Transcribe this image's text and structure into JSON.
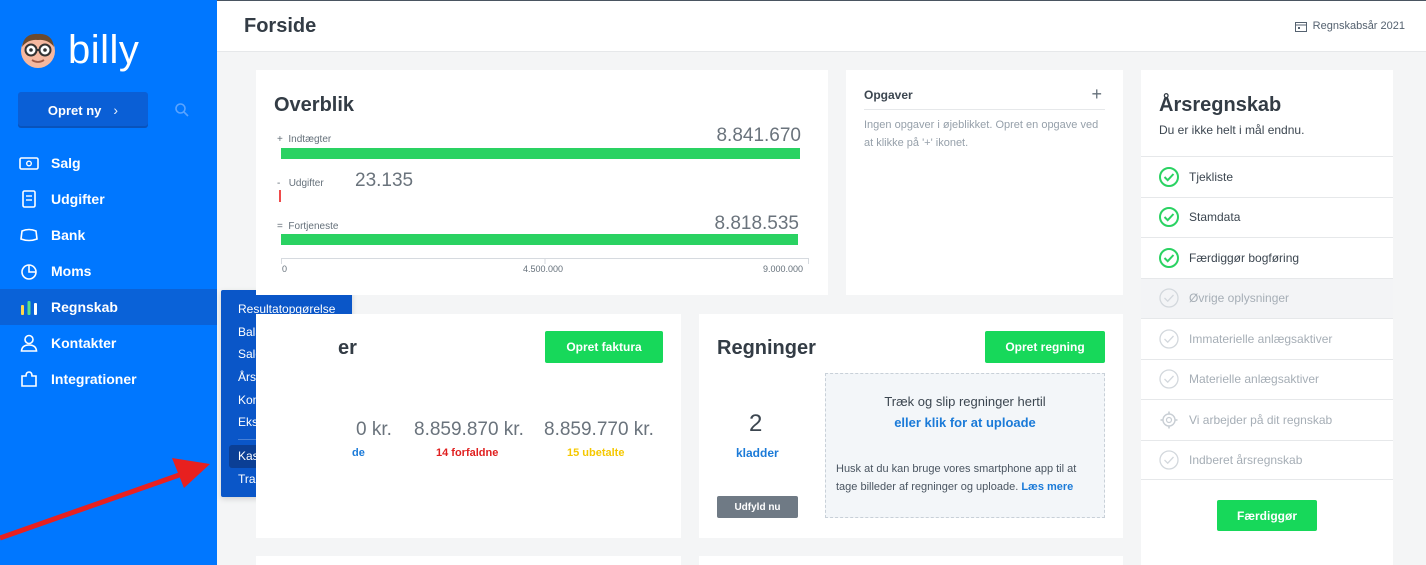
{
  "brand": {
    "name": "billy"
  },
  "sidebar": {
    "create_label": "Opret ny",
    "items": [
      {
        "label": "Salg",
        "icon": "sales-icon"
      },
      {
        "label": "Udgifter",
        "icon": "receipt-icon"
      },
      {
        "label": "Bank",
        "icon": "bank-icon"
      },
      {
        "label": "Moms",
        "icon": "pie-chart-icon"
      },
      {
        "label": "Regnskab",
        "icon": "bar-chart-icon"
      },
      {
        "label": "Kontakter",
        "icon": "person-icon"
      },
      {
        "label": "Integrationer",
        "icon": "puzzle-icon"
      }
    ],
    "submenu": [
      "Resultatopgørelse",
      "Balance",
      "Saldobalance",
      "Årsregnskab",
      "Kontoplan",
      "Eksport",
      "Kassekladde",
      "Transaktioner"
    ]
  },
  "header": {
    "title": "Forside",
    "fiscal_year": "Regnskabsår 2021"
  },
  "overview": {
    "title": "Overblik",
    "rows": [
      {
        "sign": "+",
        "label": "Indtægter",
        "value": "8.841.670",
        "amount": 8841670
      },
      {
        "sign": "-",
        "label": "Udgifter",
        "value": "23.135",
        "amount": 23135
      },
      {
        "sign": "=",
        "label": "Fortjeneste",
        "value": "8.818.535",
        "amount": 8818535
      }
    ],
    "axis_ticks": [
      "0",
      "4.500.000",
      "9.000.000"
    ],
    "axis_max": 9000000
  },
  "tasks": {
    "title": "Opgaver",
    "empty_text": "Ingen opgaver i øjeblikket. Opret en opgave ved at klikke på '+' ikonet."
  },
  "invoices": {
    "title_fragment": "er",
    "button": "Opret faktura",
    "amounts": [
      {
        "value": "0 kr.",
        "sub": "de",
        "color": "#1a7ad8"
      },
      {
        "value": "8.859.870 kr.",
        "sub": "14 forfaldne",
        "color": "#e02020"
      },
      {
        "value": "8.859.770 kr.",
        "sub": "15 ubetalte",
        "color": "#f5c800"
      }
    ]
  },
  "bills": {
    "title": "Regninger",
    "button": "Opret regning",
    "drafts_count": "2",
    "drafts_label": "kladder",
    "fill_button": "Udfyld nu",
    "drop_title": "Træk og slip regninger hertil",
    "drop_link": "eller klik for at uploade",
    "drop_hint": "Husk at du kan bruge vores smartphone app til at tage billeder af regninger og uploade.",
    "drop_hint_link": "Læs mere"
  },
  "annual": {
    "title": "Årsregnskab",
    "subtitle": "Du er ikke helt i mål endnu.",
    "steps": [
      {
        "label": "Tjekliste",
        "state": "done"
      },
      {
        "label": "Stamdata",
        "state": "done"
      },
      {
        "label": "Færdiggør bogføring",
        "state": "done"
      },
      {
        "label": "Øvrige oplysninger",
        "state": "disabled"
      },
      {
        "label": "Immaterielle anlægsaktiver",
        "state": "disabled"
      },
      {
        "label": "Materielle anlægsaktiver",
        "state": "disabled"
      },
      {
        "label": "Vi arbejder på dit regnskab",
        "state": "pending"
      },
      {
        "label": "Indberet årsregnskab",
        "state": "disabled"
      }
    ],
    "button": "Færdiggør"
  },
  "colors": {
    "sidebar": "#0077ff",
    "accent_green": "#17d85a",
    "bar_green": "#2ad262",
    "expense_red": "#ef4b4b",
    "arrow_red": "#e8201f"
  }
}
